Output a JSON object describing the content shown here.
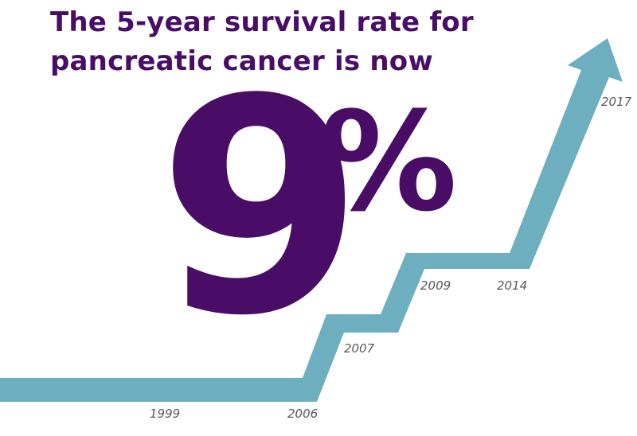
{
  "headline": {
    "line1": "The 5-year survival rate for",
    "line2": "pancreatic cancer is now"
  },
  "big_number": "9",
  "percent_sign": "%",
  "colors": {
    "text": "#4a0d67",
    "trend_line": "#6eafbf",
    "year_labels": "#58595b"
  },
  "chart_data": {
    "type": "line",
    "x": [
      "1999",
      "2006",
      "2007",
      "2009",
      "2014",
      "2017"
    ],
    "xlabel": "",
    "ylabel": "",
    "grid": false,
    "legend": "none",
    "style": "stepped arrow"
  }
}
